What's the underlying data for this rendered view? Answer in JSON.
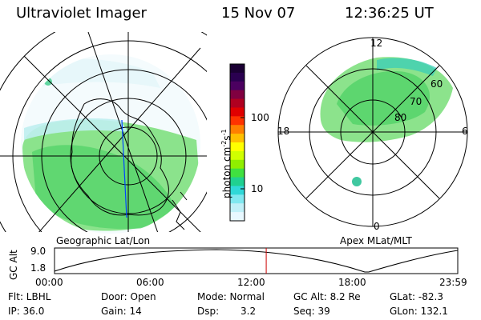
{
  "header": {
    "instrument": "Ultraviolet Imager",
    "date": "15 Nov 07",
    "time": "12:36:25 UT"
  },
  "left_panel": {
    "caption": "Geographic Lat/Lon"
  },
  "right_panel": {
    "caption": "Apex MLat/MLT",
    "mlt_labels": [
      "12",
      "18",
      "6",
      "0"
    ],
    "lat_labels": [
      "60",
      "70",
      "80"
    ]
  },
  "colorbar": {
    "unit_label": "photon cm",
    "unit_sup1": "-2",
    "unit_mid": "s",
    "unit_sup2": "-1",
    "tick_labels": [
      "100",
      "10"
    ],
    "colors_top_to_bottom": [
      "#1a0033",
      "#2a0050",
      "#4b0060",
      "#800040",
      "#b00020",
      "#e00000",
      "#ff3300",
      "#ff8000",
      "#ffc000",
      "#ffff00",
      "#d0ff00",
      "#90ee00",
      "#40e040",
      "#20d090",
      "#30d8d8",
      "#80e8f0",
      "#c0f0f8",
      "#e8f8ff"
    ]
  },
  "altitude_plot": {
    "ylabel": "GC Alt",
    "y_ticks": [
      "9.0",
      "1.8"
    ],
    "x_ticks": [
      "00:00",
      "06:00",
      "12:00",
      "18:00",
      "23:59"
    ],
    "current_time_hours": 12.6
  },
  "info": {
    "filter": "Flt: LBHL",
    "ip": "IP: 36.0",
    "door": "Door: Open",
    "gain": "Gain: 14",
    "mode": "Mode: Normal",
    "dsp_label": "Dsp:",
    "dsp_value": "3.2",
    "gc_alt": "GC Alt: 8.2 Re",
    "seq": "Seq: 39",
    "glat": "GLat: -82.3",
    "glon": "GLon: 132.1"
  },
  "colors": {
    "aurora_green": "#66dd55",
    "aurora_cyan": "#33ccbb",
    "time_marker": "#cc0000"
  }
}
